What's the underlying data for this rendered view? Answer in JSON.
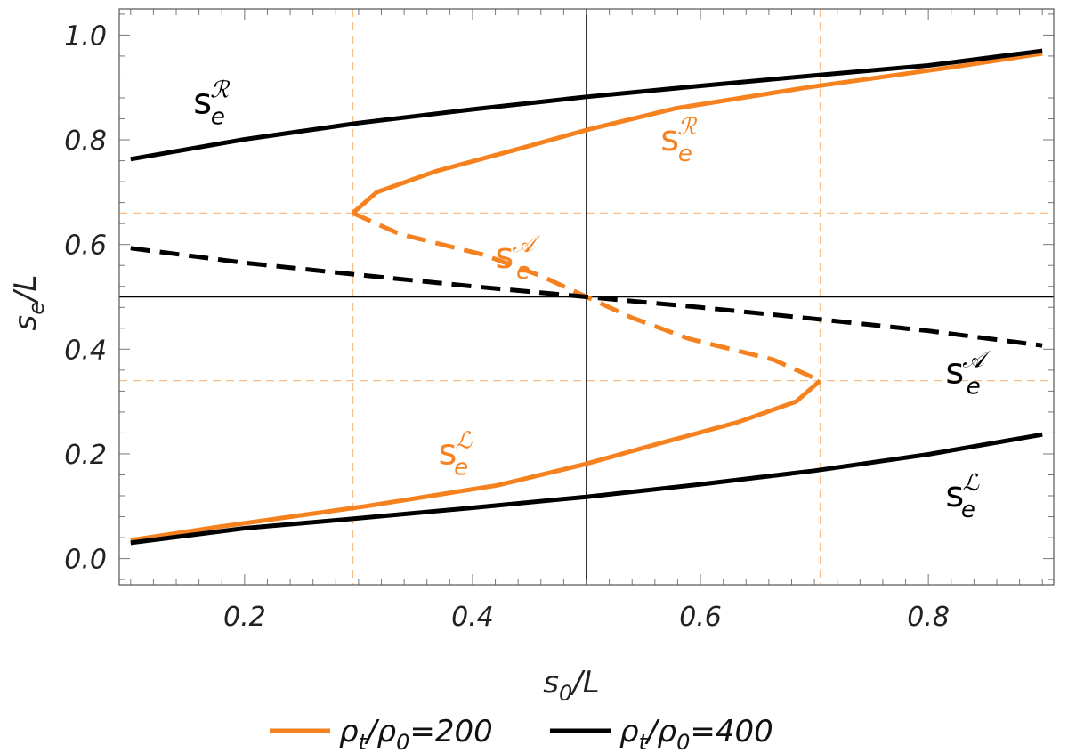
{
  "chart_data": {
    "type": "line",
    "xlabel": "s₀/L",
    "ylabel": "sₑ/L",
    "xlim": [
      0.09,
      0.91
    ],
    "ylim": [
      -0.05,
      1.05
    ],
    "xticks": [
      0.2,
      0.4,
      0.6,
      0.8
    ],
    "xtick_labels": [
      "0.2",
      "0.4",
      "0.6",
      "0.8"
    ],
    "yticks": [
      0.0,
      0.2,
      0.4,
      0.6,
      0.8,
      1.0
    ],
    "ytick_labels": [
      "0.0",
      "0.2",
      "0.4",
      "0.6",
      "0.8",
      "1.0"
    ],
    "reference_lines": {
      "vertical_solid": 0.5,
      "horizontal_solid": 0.5,
      "vertical_dashed": [
        0.295,
        0.705
      ],
      "horizontal_dashed": [
        0.66,
        0.34
      ]
    },
    "colors": {
      "orange": "#F5821F",
      "black": "#000000",
      "grid": "#F5C08A"
    },
    "series": [
      {
        "name": "ρt/ρ0=200",
        "color": "#F5821F",
        "branches": [
          {
            "label": "R",
            "style": "solid",
            "y": [
              0.66,
              0.7,
              0.74,
              0.78,
              0.82,
              0.86,
              0.9,
              0.94,
              0.965
            ],
            "x": [
              0.295,
              0.316,
              0.368,
              0.436,
              0.502,
              0.578,
              0.694,
              0.825,
              0.9
            ]
          },
          {
            "label": "A",
            "style": "dashed",
            "y": [
              0.66,
              0.62,
              0.58,
              0.54,
              0.5,
              0.46,
              0.42,
              0.38,
              0.34
            ],
            "x": [
              0.295,
              0.336,
              0.41,
              0.46,
              0.5,
              0.54,
              0.59,
              0.664,
              0.705
            ]
          },
          {
            "label": "L",
            "style": "solid",
            "y": [
              0.34,
              0.3,
              0.26,
              0.22,
              0.18,
              0.14,
              0.1,
              0.06,
              0.035
            ],
            "x": [
              0.705,
              0.684,
              0.632,
              0.564,
              0.498,
              0.422,
              0.306,
              0.175,
              0.1
            ]
          }
        ],
        "annotations": [
          {
            "text": "s",
            "sub": "e",
            "sup": "ℛ",
            "x": 0.565,
            "y": 0.78
          },
          {
            "text": "s",
            "sub": "e",
            "sup": "𝒜",
            "x": 0.42,
            "y": 0.555
          },
          {
            "text": "s",
            "sub": "e",
            "sup": "ℒ",
            "x": 0.37,
            "y": 0.18
          }
        ]
      },
      {
        "name": "ρt/ρ0=400",
        "color": "#000000",
        "branches": [
          {
            "label": "R",
            "style": "solid",
            "x": [
              0.1,
              0.2,
              0.3,
              0.4,
              0.5,
              0.6,
              0.7,
              0.8,
              0.9
            ],
            "y": [
              0.763,
              0.801,
              0.832,
              0.858,
              0.882,
              0.903,
              0.923,
              0.942,
              0.97
            ]
          },
          {
            "label": "A",
            "style": "dashed",
            "x": [
              0.1,
              0.2,
              0.3,
              0.4,
              0.5,
              0.6,
              0.7,
              0.8,
              0.9
            ],
            "y": [
              0.593,
              0.565,
              0.542,
              0.52,
              0.5,
              0.48,
              0.458,
              0.435,
              0.407
            ]
          },
          {
            "label": "L",
            "style": "solid",
            "x": [
              0.1,
              0.2,
              0.3,
              0.4,
              0.5,
              0.6,
              0.7,
              0.8,
              0.9
            ],
            "y": [
              0.03,
              0.058,
              0.077,
              0.097,
              0.118,
              0.142,
              0.168,
              0.199,
              0.237
            ]
          }
        ],
        "annotations": [
          {
            "text": "s",
            "sub": "e",
            "sup": "ℛ",
            "x": 0.155,
            "y": 0.85
          },
          {
            "text": "s",
            "sub": "e",
            "sup": "𝒜",
            "x": 0.815,
            "y": 0.335
          },
          {
            "text": "s",
            "sub": "e",
            "sup": "ℒ",
            "x": 0.815,
            "y": 0.1
          }
        ]
      }
    ],
    "legend": {
      "placement": "bottom-center",
      "entries": [
        {
          "label": "ρt/ρ0=200",
          "main": "ρ",
          "s1": "t",
          "mid": "/ρ",
          "s2": "0",
          "tail": "=200",
          "color": "#F5821F"
        },
        {
          "label": "ρt/ρ0=400",
          "main": "ρ",
          "s1": "t",
          "mid": "/ρ",
          "s2": "0",
          "tail": "=400",
          "color": "#000000"
        }
      ]
    }
  }
}
